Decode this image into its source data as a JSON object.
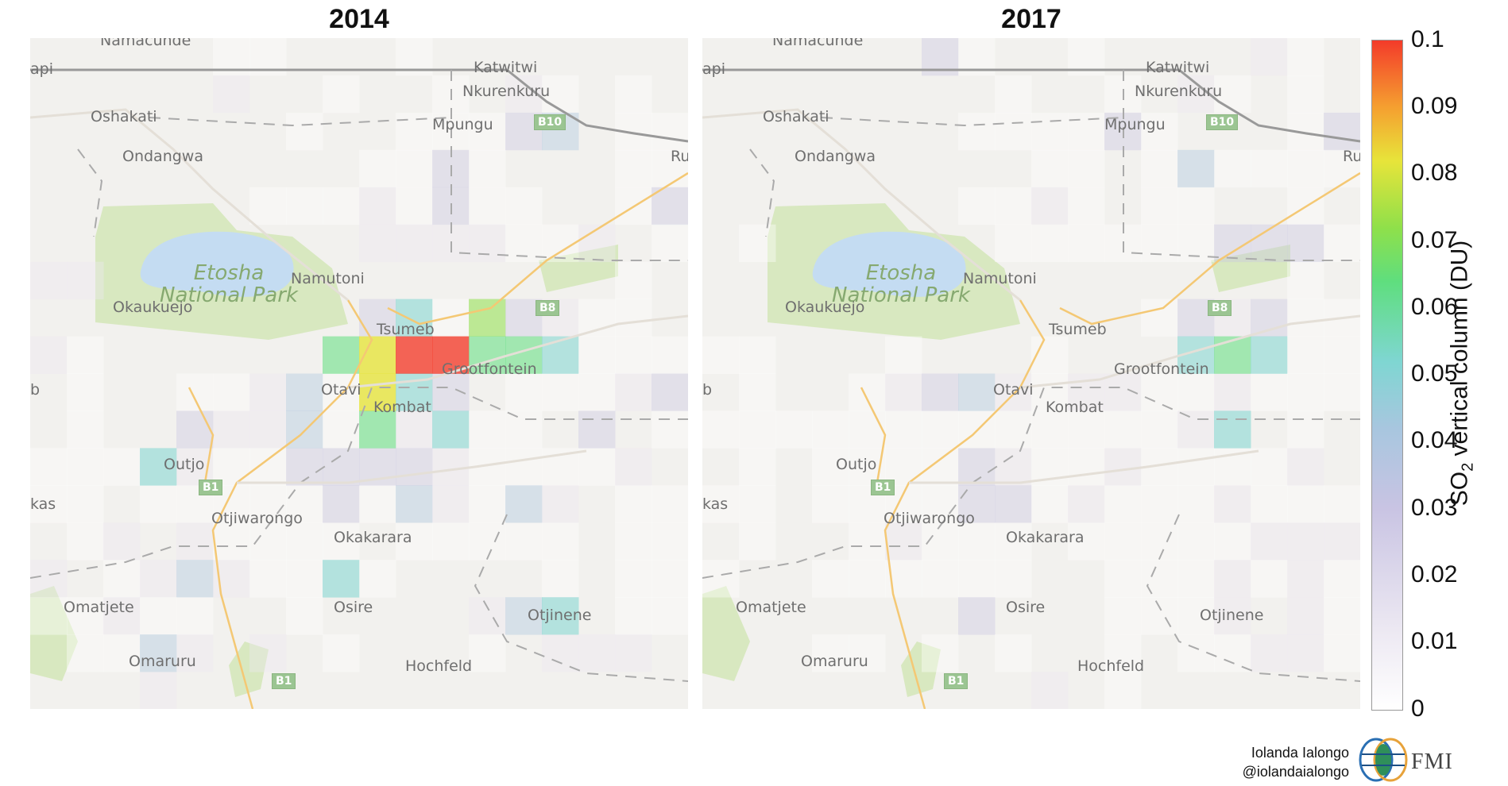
{
  "panels": [
    {
      "title": "2014"
    },
    {
      "title": "2017"
    }
  ],
  "map_labels": {
    "namacunde": "Namacunde",
    "api": "api",
    "katwitwi": "Katwitwi",
    "nkurenkuru": "Nkurenkuru",
    "oshakati": "Oshakati",
    "mpungu": "Mpungu",
    "b10": "B10",
    "ondangwa": "Ondangwa",
    "ru": "Ru",
    "park_line1": "Etosha",
    "park_line2": "National Park",
    "namutoni": "Namutoni",
    "okaukuejo": "Okaukuejo",
    "b8": "B8",
    "tsumeb": "Tsumeb",
    "grootfontein": "Grootfontein",
    "b": "b",
    "otavi": "Otavi",
    "kombat": "Kombat",
    "outjo": "Outjo",
    "b1": "B1",
    "kas": "kas",
    "otjiwarongo": "Otjiwarongo",
    "okakarara": "Okakarara",
    "omatjete": "Omatjete",
    "osire": "Osire",
    "otjinene": "Otjinene",
    "omaruru": "Omaruru",
    "hochfeld": "Hochfeld"
  },
  "colorbar": {
    "ticks": [
      "0.1",
      "0.09",
      "0.08",
      "0.07",
      "0.06",
      "0.05",
      "0.04",
      "0.03",
      "0.02",
      "0.01",
      "0"
    ],
    "range": [
      0,
      0.1
    ],
    "label_main": "SO",
    "label_sub": "2",
    "label_rest": " vertical column (DU)",
    "colors": [
      "#ffffff",
      "#ece8f2",
      "#c9c4e3",
      "#a8c6df",
      "#7fd6d2",
      "#5fde7e",
      "#8fe04a",
      "#e7e43a",
      "#f5a030",
      "#f33b2a"
    ]
  },
  "credits": {
    "author": "Iolanda Ialongo",
    "handle": "@iolandaialongo",
    "org": "FMI"
  },
  "grid": {
    "rows": 18,
    "cols": 18,
    "cells_2014": [
      [
        0,
        0,
        0,
        0,
        0,
        1,
        1,
        0,
        0,
        0,
        1,
        0,
        0,
        0,
        0,
        0,
        0,
        0
      ],
      [
        0,
        0,
        0,
        0,
        0,
        2,
        0,
        0,
        1,
        0,
        0,
        1,
        0,
        2,
        1,
        0,
        1,
        0
      ],
      [
        0,
        0,
        0,
        0,
        0,
        0,
        0,
        1,
        0,
        0,
        1,
        1,
        1,
        3,
        4,
        0,
        1,
        1
      ],
      [
        0,
        0,
        0,
        0,
        0,
        0,
        0,
        0,
        0,
        1,
        1,
        3,
        1,
        0,
        0,
        0,
        1,
        1
      ],
      [
        0,
        0,
        0,
        0,
        0,
        0,
        1,
        1,
        1,
        2,
        1,
        3,
        1,
        1,
        0,
        0,
        1,
        3
      ],
      [
        0,
        0,
        0,
        0,
        0,
        0,
        0,
        0,
        0,
        2,
        2,
        2,
        2,
        1,
        1,
        2,
        0,
        1
      ],
      [
        2,
        2,
        0,
        0,
        0,
        0,
        0,
        0,
        0,
        0,
        0,
        0,
        0,
        0,
        0,
        0,
        1,
        0
      ],
      [
        0,
        0,
        0,
        0,
        0,
        0,
        0,
        0,
        0,
        3,
        5,
        1,
        7,
        3,
        2,
        1,
        1,
        0
      ],
      [
        2,
        1,
        0,
        0,
        0,
        0,
        0,
        0,
        6,
        8,
        10,
        10,
        6,
        6,
        5,
        1,
        1,
        1
      ],
      [
        0,
        1,
        0,
        0,
        1,
        1,
        2,
        4,
        1,
        8,
        5,
        3,
        0,
        1,
        1,
        1,
        2,
        3
      ],
      [
        0,
        1,
        0,
        0,
        3,
        2,
        2,
        4,
        1,
        6,
        2,
        5,
        1,
        1,
        0,
        3,
        0,
        1
      ],
      [
        1,
        1,
        1,
        5,
        2,
        1,
        1,
        3,
        3,
        3,
        3,
        2,
        1,
        1,
        1,
        1,
        2,
        0
      ],
      [
        1,
        1,
        0,
        1,
        1,
        1,
        1,
        1,
        3,
        1,
        4,
        2,
        1,
        4,
        2,
        0,
        1,
        1
      ],
      [
        0,
        1,
        2,
        0,
        2,
        1,
        1,
        1,
        1,
        0,
        1,
        1,
        1,
        1,
        1,
        0,
        1,
        1
      ],
      [
        2,
        0,
        1,
        2,
        4,
        2,
        1,
        1,
        5,
        1,
        0,
        0,
        0,
        0,
        1,
        0,
        1,
        1
      ],
      [
        1,
        1,
        2,
        1,
        1,
        0,
        0,
        1,
        0,
        0,
        0,
        0,
        2,
        4,
        5,
        0,
        1,
        1
      ],
      [
        0,
        1,
        1,
        4,
        2,
        0,
        2,
        0,
        1,
        0,
        0,
        0,
        1,
        0,
        2,
        2,
        2,
        0
      ],
      [
        0,
        0,
        0,
        2,
        0,
        0,
        0,
        0,
        0,
        0,
        0,
        0,
        0,
        0,
        0,
        0,
        0,
        0
      ]
    ],
    "cells_2017": [
      [
        0,
        0,
        0,
        0,
        0,
        0,
        3,
        1,
        0,
        0,
        1,
        0,
        0,
        0,
        0,
        2,
        1,
        0
      ],
      [
        0,
        0,
        0,
        0,
        0,
        0,
        0,
        0,
        1,
        0,
        0,
        1,
        0,
        2,
        1,
        0,
        1,
        0
      ],
      [
        0,
        0,
        0,
        0,
        0,
        0,
        0,
        1,
        1,
        1,
        1,
        3,
        1,
        0,
        0,
        0,
        1,
        3
      ],
      [
        0,
        0,
        0,
        0,
        0,
        0,
        0,
        0,
        0,
        1,
        1,
        0,
        1,
        4,
        1,
        1,
        1,
        1
      ],
      [
        0,
        0,
        0,
        0,
        0,
        0,
        0,
        1,
        1,
        2,
        1,
        0,
        1,
        1,
        0,
        0,
        1,
        0
      ],
      [
        0,
        1,
        0,
        0,
        0,
        0,
        0,
        0,
        1,
        1,
        1,
        1,
        1,
        1,
        3,
        3,
        3,
        1
      ],
      [
        0,
        0,
        0,
        0,
        0,
        0,
        0,
        0,
        0,
        0,
        0,
        0,
        0,
        0,
        0,
        0,
        1,
        0
      ],
      [
        0,
        0,
        0,
        0,
        0,
        0,
        0,
        0,
        0,
        0,
        0,
        0,
        1,
        3,
        2,
        3,
        1,
        1
      ],
      [
        1,
        1,
        0,
        0,
        0,
        1,
        0,
        0,
        0,
        1,
        0,
        0,
        0,
        5,
        6,
        5,
        1,
        1
      ],
      [
        0,
        1,
        0,
        0,
        1,
        2,
        3,
        4,
        2,
        1,
        2,
        2,
        1,
        1,
        2,
        1,
        1,
        1
      ],
      [
        1,
        1,
        1,
        1,
        1,
        1,
        1,
        1,
        1,
        1,
        1,
        1,
        1,
        2,
        5,
        0,
        1,
        0
      ],
      [
        0,
        1,
        0,
        1,
        1,
        1,
        1,
        3,
        2,
        1,
        1,
        2,
        1,
        1,
        1,
        1,
        2,
        0
      ],
      [
        1,
        1,
        0,
        1,
        1,
        1,
        1,
        3,
        3,
        1,
        2,
        1,
        1,
        1,
        2,
        1,
        1,
        1
      ],
      [
        0,
        1,
        0,
        0,
        1,
        2,
        1,
        1,
        1,
        0,
        1,
        1,
        1,
        1,
        1,
        2,
        2,
        2
      ],
      [
        1,
        0,
        0,
        1,
        1,
        1,
        1,
        1,
        1,
        0,
        0,
        1,
        1,
        1,
        2,
        1,
        2,
        1
      ],
      [
        0,
        0,
        0,
        0,
        0,
        0,
        0,
        3,
        0,
        0,
        0,
        1,
        1,
        1,
        2,
        0,
        2,
        1
      ],
      [
        0,
        0,
        0,
        1,
        1,
        0,
        1,
        0,
        1,
        0,
        0,
        1,
        0,
        1,
        1,
        2,
        2,
        1
      ],
      [
        0,
        0,
        0,
        0,
        0,
        0,
        0,
        0,
        0,
        2,
        0,
        1,
        0,
        0,
        0,
        0,
        0,
        0
      ]
    ]
  }
}
